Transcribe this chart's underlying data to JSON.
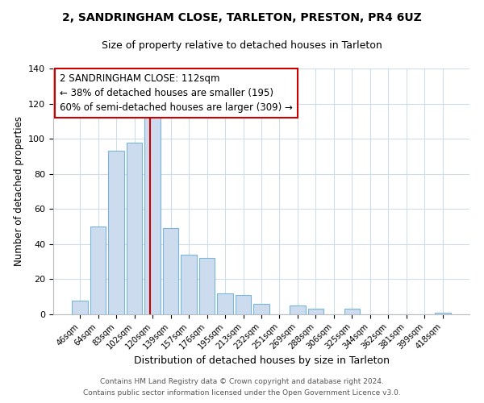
{
  "title1": "2, SANDRINGHAM CLOSE, TARLETON, PRESTON, PR4 6UZ",
  "title2": "Size of property relative to detached houses in Tarleton",
  "xlabel": "Distribution of detached houses by size in Tarleton",
  "ylabel": "Number of detached properties",
  "categories": [
    "46sqm",
    "64sqm",
    "83sqm",
    "102sqm",
    "120sqm",
    "139sqm",
    "157sqm",
    "176sqm",
    "195sqm",
    "213sqm",
    "232sqm",
    "251sqm",
    "269sqm",
    "288sqm",
    "306sqm",
    "325sqm",
    "344sqm",
    "362sqm",
    "381sqm",
    "399sqm",
    "418sqm"
  ],
  "values": [
    8,
    50,
    93,
    98,
    113,
    49,
    34,
    32,
    12,
    11,
    6,
    0,
    5,
    3,
    0,
    3,
    0,
    0,
    0,
    0,
    1
  ],
  "bar_color": "#ccdcee",
  "bar_edge_color": "#7ab4d8",
  "vline_x": 3.85,
  "vline_color": "#cc0000",
  "annotation_lines": [
    "2 SANDRINGHAM CLOSE: 112sqm",
    "← 38% of detached houses are smaller (195)",
    "60% of semi-detached houses are larger (309) →"
  ],
  "annotation_box_edgecolor": "#cc0000",
  "ylim": [
    0,
    140
  ],
  "yticks": [
    0,
    20,
    40,
    60,
    80,
    100,
    120,
    140
  ],
  "footer1": "Contains HM Land Registry data © Crown copyright and database right 2024.",
  "footer2": "Contains public sector information licensed under the Open Government Licence v3.0.",
  "background_color": "#ffffff",
  "grid_color": "#d0dce8"
}
